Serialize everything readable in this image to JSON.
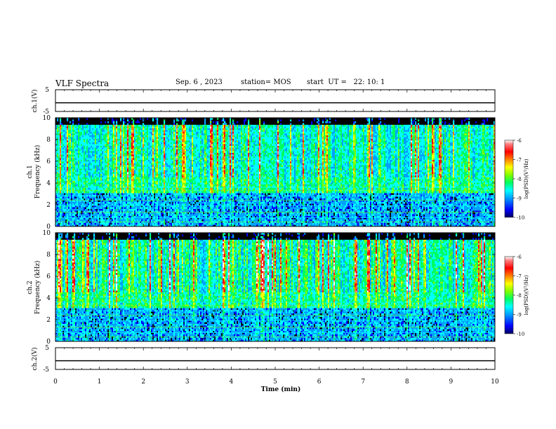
{
  "header": {
    "title": "VLF Spectra",
    "date": "Sep. 6 , 2023",
    "station": "station= MOS",
    "start": "start  UT =   22: 10: 1"
  },
  "chart_data": [
    {
      "type": "line",
      "name": "ch1-waveform",
      "ylabel": "ch.1(V)",
      "ylim": [
        -5,
        5
      ],
      "yticks": [
        "5",
        "-5"
      ],
      "x": [
        0,
        10
      ],
      "y": [
        -1,
        -1
      ]
    },
    {
      "type": "heatmap",
      "name": "ch1-spectrogram",
      "ylabel": "ch.1\nFrequency (kHz)",
      "ylim": [
        0,
        10
      ],
      "yticks": [
        "0",
        "2",
        "4",
        "6",
        "8",
        "10"
      ],
      "xlim": [
        0,
        10
      ],
      "colorbar": {
        "label": "log(PSD)(V²/Hz)",
        "range": [
          -10,
          -6
        ],
        "ticks": [
          "-6",
          "-7",
          "-8",
          "-9",
          "-10"
        ]
      }
    },
    {
      "type": "heatmap",
      "name": "ch2-spectrogram",
      "ylabel": "ch.2\nFrequency (kHz)",
      "ylim": [
        0,
        10
      ],
      "yticks": [
        "0",
        "2",
        "4",
        "6",
        "8",
        "10"
      ],
      "xlim": [
        0,
        10
      ],
      "colorbar": {
        "label": "log(PSD)(V²/Hz)",
        "range": [
          -10,
          -6
        ],
        "ticks": [
          "-6",
          "-7",
          "-8",
          "-9",
          "-10"
        ]
      }
    },
    {
      "type": "line",
      "name": "ch2-waveform",
      "ylabel": "ch.2(V)",
      "ylim": [
        -5,
        5
      ],
      "yticks": [
        "5",
        "-5"
      ],
      "x": [
        0,
        10
      ],
      "y": [
        -1,
        -1
      ]
    }
  ],
  "xaxis": {
    "label": "Time  (min)",
    "range": [
      0,
      10
    ],
    "ticks": [
      "0",
      "1",
      "2",
      "3",
      "4",
      "5",
      "6",
      "7",
      "8",
      "9",
      "10"
    ]
  },
  "colors": {
    "scale": [
      "#000060",
      "#0000ff",
      "#00a0ff",
      "#00ffff",
      "#00ff60",
      "#80ff00",
      "#ffff00",
      "#ff8000",
      "#ff0000",
      "#ff8080",
      "#ffffff"
    ]
  }
}
